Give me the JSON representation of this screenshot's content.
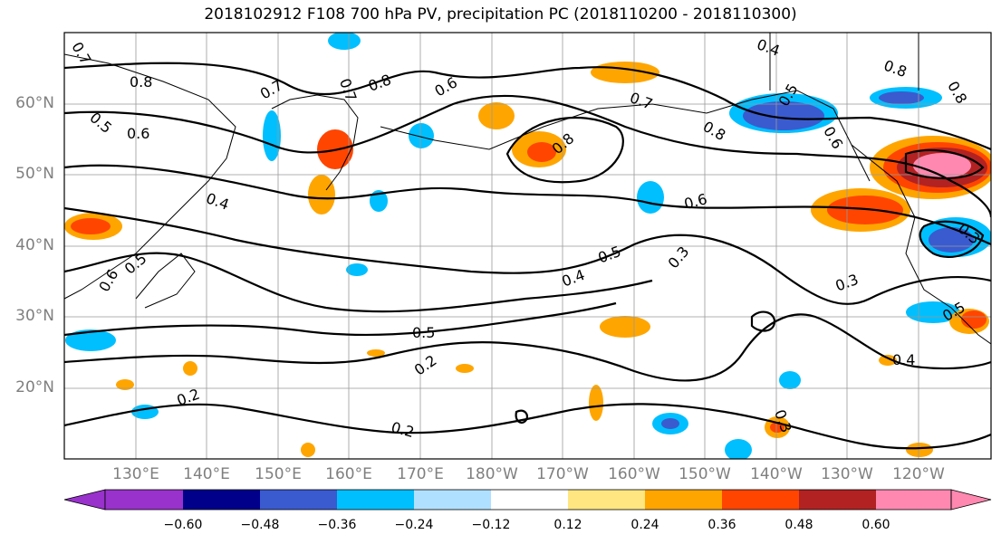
{
  "title": "2018102912 F108 700 hPa PV, precipitation PC (2018110200 - 2018110300)",
  "lat_labels": [
    "60°N",
    "50°N",
    "40°N",
    "30°N",
    "20°N"
  ],
  "lon_labels": [
    "130°E",
    "140°E",
    "150°E",
    "160°E",
    "170°E",
    "180°W",
    "170°W",
    "160°W",
    "150°W",
    "140°W",
    "130°W",
    "120°W"
  ],
  "colorbar": {
    "ticks": [
      "−0.60",
      "−0.48",
      "−0.36",
      "−0.24",
      "−0.12",
      "0.12",
      "0.24",
      "0.36",
      "0.48",
      "0.60"
    ],
    "colors": [
      "#9932cc",
      "#00008b",
      "#3a5bd0",
      "#00bfff",
      "#b0e0ff",
      "#ffffff",
      "#ffe680",
      "#ffa500",
      "#ff4500",
      "#b22222",
      "#ff88b0"
    ]
  },
  "contour_labels": [
    "0.7",
    "0.8",
    "0.5",
    "0.6",
    "0.7",
    "0.7",
    "0.8",
    "0.6",
    "0.4",
    "0.5",
    "0.4",
    "0.8",
    "0.8",
    "0.5",
    "0.6",
    "0.8",
    "0.7",
    "0.8",
    "0.6",
    "0.4",
    "0.5",
    "0.3",
    "0.3",
    "0.3",
    "0.5",
    "0.5",
    "0.2",
    "0.2",
    "0.2",
    "0.4",
    "0.3",
    "0.6"
  ]
}
